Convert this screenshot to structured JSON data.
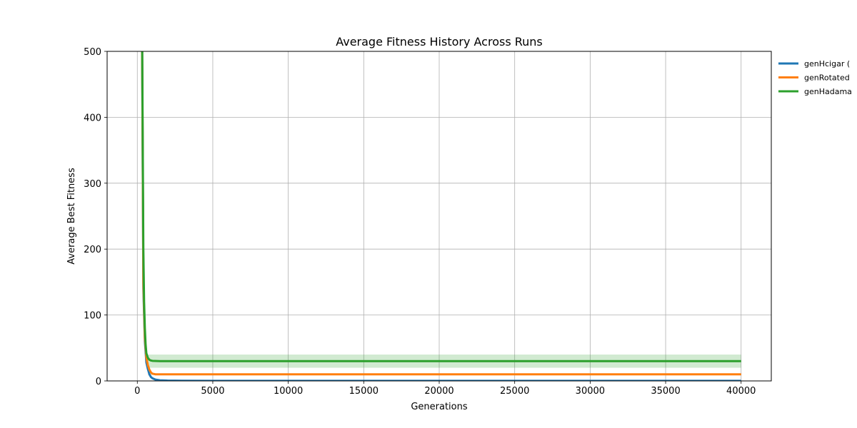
{
  "chart_data": {
    "type": "line",
    "title": "Average Fitness History Across Runs",
    "xlabel": "Generations",
    "ylabel": "Average Best Fitness",
    "xlim": [
      -2000,
      42000
    ],
    "ylim": [
      0,
      500
    ],
    "x_ticks": [
      0,
      5000,
      10000,
      15000,
      20000,
      25000,
      30000,
      35000,
      40000
    ],
    "y_ticks": [
      0,
      100,
      200,
      300,
      400,
      500
    ],
    "grid": true,
    "legend_position": "outside-top-right",
    "series": [
      {
        "name": "genHcigar (",
        "color": "#1f77b4",
        "x": [
          300,
          400,
          500,
          600,
          700,
          800,
          900,
          1000,
          1200,
          1500,
          2000,
          3000,
          5000,
          10000,
          20000,
          30000,
          40000
        ],
        "y": [
          600,
          140,
          60,
          28,
          18,
          10,
          6,
          4,
          2,
          1,
          0.5,
          0.3,
          0.2,
          0.1,
          0.1,
          0.1,
          0.1
        ]
      },
      {
        "name": "genRotated",
        "color": "#ff7f0e",
        "x": [
          300,
          400,
          500,
          600,
          700,
          800,
          900,
          1000,
          1200,
          1500,
          2000,
          3000,
          5000,
          10000,
          20000,
          30000,
          40000
        ],
        "y": [
          600,
          150,
          65,
          35,
          24,
          17,
          13,
          11,
          10,
          10,
          10,
          10,
          10,
          10,
          10,
          10,
          10
        ],
        "band": {
          "lower": 9,
          "upper": 11
        }
      },
      {
        "name": "genHadama",
        "color": "#2ca02c",
        "x": [
          300,
          350,
          400,
          450,
          500,
          550,
          600,
          700,
          800,
          900,
          1000,
          1500,
          2000,
          5000,
          10000,
          20000,
          30000,
          40000
        ],
        "y": [
          600,
          400,
          200,
          120,
          80,
          55,
          42,
          35,
          32,
          31,
          30.5,
          30,
          30,
          30,
          30,
          30,
          30,
          30
        ],
        "band": {
          "lower": 20,
          "upper": 40
        }
      }
    ]
  }
}
